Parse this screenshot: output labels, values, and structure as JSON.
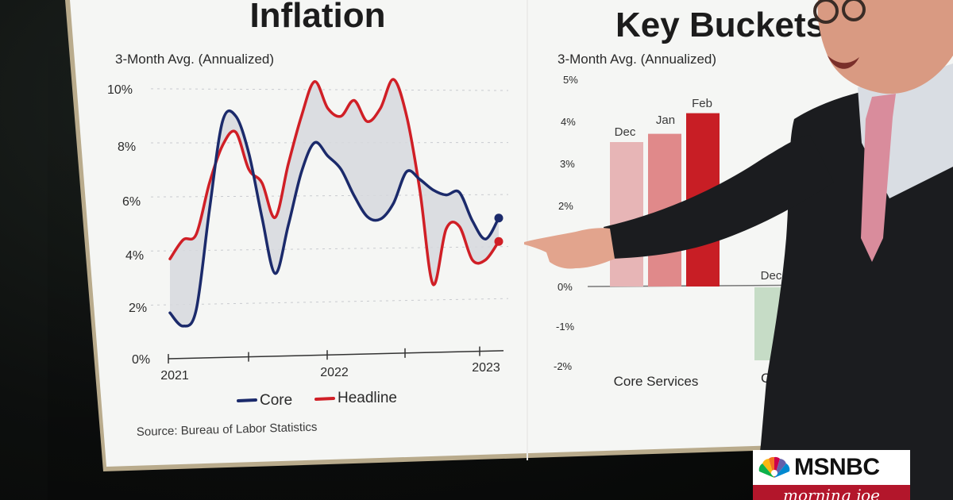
{
  "left_chart": {
    "title": "Inflation",
    "subtitle": "3-Month Avg. (Annualized)",
    "y_ticks": [
      "10%",
      "8%",
      "6%",
      "4%",
      "2%",
      "0%"
    ],
    "x_ticks": [
      "2021",
      "2022",
      "2023"
    ],
    "legend": {
      "core": "Core",
      "headline": "Headline"
    },
    "source": "Source: Bureau of Labor Statistics",
    "colors": {
      "core": "#1b2a6b",
      "headline": "#d01f26",
      "band": "#d6d8dd"
    }
  },
  "right_chart": {
    "title": "Key Buckets",
    "subtitle": "3-Month Avg. (Annualized)",
    "y_ticks": [
      "5%",
      "4%",
      "3%",
      "2%",
      "0%",
      "-1%",
      "-2%"
    ],
    "bar_labels": [
      "Dec",
      "Jan",
      "Feb"
    ],
    "partial_label": "Dec",
    "category": "Core Services",
    "partial_category": "C"
  },
  "chart_data": [
    {
      "type": "line",
      "title": "Inflation",
      "subtitle": "3-Month Avg. (Annualized)",
      "x": [
        "2021-01",
        "2021-02",
        "2021-03",
        "2021-04",
        "2021-05",
        "2021-06",
        "2021-07",
        "2021-08",
        "2021-09",
        "2021-10",
        "2021-11",
        "2021-12",
        "2022-01",
        "2022-02",
        "2022-03",
        "2022-04",
        "2022-05",
        "2022-06",
        "2022-07",
        "2022-08",
        "2022-09",
        "2022-10",
        "2022-11",
        "2022-12",
        "2023-01",
        "2023-02"
      ],
      "series": [
        {
          "name": "Core",
          "color": "#1b2a6b",
          "values": [
            1.7,
            1.2,
            1.8,
            5.5,
            8.8,
            9.0,
            7.6,
            5.2,
            3.1,
            4.9,
            6.9,
            8.0,
            7.5,
            7.0,
            6.0,
            5.2,
            5.1,
            5.7,
            6.9,
            6.6,
            6.2,
            6.0,
            6.1,
            5.0,
            4.3,
            5.1
          ]
        },
        {
          "name": "Headline",
          "color": "#d01f26",
          "values": [
            3.7,
            4.4,
            4.6,
            6.5,
            7.9,
            8.4,
            7.0,
            6.5,
            5.2,
            7.2,
            9.0,
            10.3,
            9.3,
            9.0,
            9.6,
            8.8,
            9.3,
            10.4,
            9.0,
            6.2,
            2.6,
            4.7,
            4.8,
            3.5,
            3.5,
            4.2
          ]
        }
      ],
      "ylim": [
        0,
        10
      ],
      "y_ticks": [
        0,
        2,
        4,
        6,
        8,
        10
      ],
      "grid": true,
      "legend_position": "bottom-center"
    },
    {
      "type": "bar",
      "title": "Key Buckets",
      "subtitle": "3-Month Avg. (Annualized)",
      "categories": [
        "Core Services"
      ],
      "series": [
        {
          "name": "Dec",
          "color": "#e7b5b6",
          "values": [
            3.5
          ]
        },
        {
          "name": "Jan",
          "color": "#e0898a",
          "values": [
            3.7
          ]
        },
        {
          "name": "Feb",
          "color": "#c81e25",
          "values": [
            4.2
          ]
        }
      ],
      "ylim": [
        -2,
        5
      ],
      "y_ticks": [
        5,
        4,
        3,
        2,
        0,
        -1,
        -2
      ]
    }
  ]
}
